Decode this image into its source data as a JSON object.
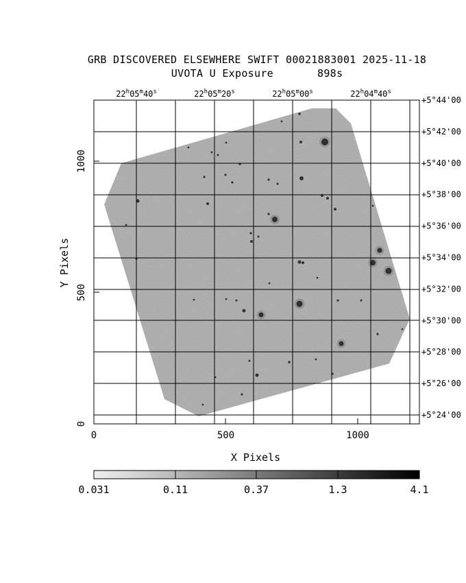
{
  "header": {
    "title": "GRB DISCOVERED ELSEWHERE SWIFT 00021883001 2025-11-18",
    "subtitle": "UVOTA U Exposure",
    "exposure": "898s"
  },
  "axes": {
    "xlabel": "X Pixels",
    "ylabel": "Y Pixels",
    "x_ticks": [
      "0",
      "500",
      "1000"
    ],
    "y_ticks": [
      "0",
      "500",
      "1000"
    ],
    "x_range": [
      0,
      1230
    ],
    "y_range": [
      0,
      1230
    ]
  },
  "ra_ticks": [
    {
      "h": "22",
      "m": "05",
      "s": "40"
    },
    {
      "h": "22",
      "m": "05",
      "s": "20"
    },
    {
      "h": "22",
      "m": "05",
      "s": "00"
    },
    {
      "h": "22",
      "m": "04",
      "s": "40"
    }
  ],
  "dec_ticks": [
    "+5°44'00",
    "+5°42'00",
    "+5°40'00",
    "+5°38'00",
    "+5°36'00",
    "+5°34'00",
    "+5°32'00",
    "+5°30'00",
    "+5°28'00",
    "+5°26'00",
    "+5°24'00"
  ],
  "colorbar": {
    "labels": [
      "0.031",
      "0.11",
      "0.37",
      "1.3",
      "4.1"
    ],
    "scale": "log"
  },
  "colors": {
    "sky": "#a9a9a9",
    "grid": "#000000",
    "background": "#ffffff"
  }
}
